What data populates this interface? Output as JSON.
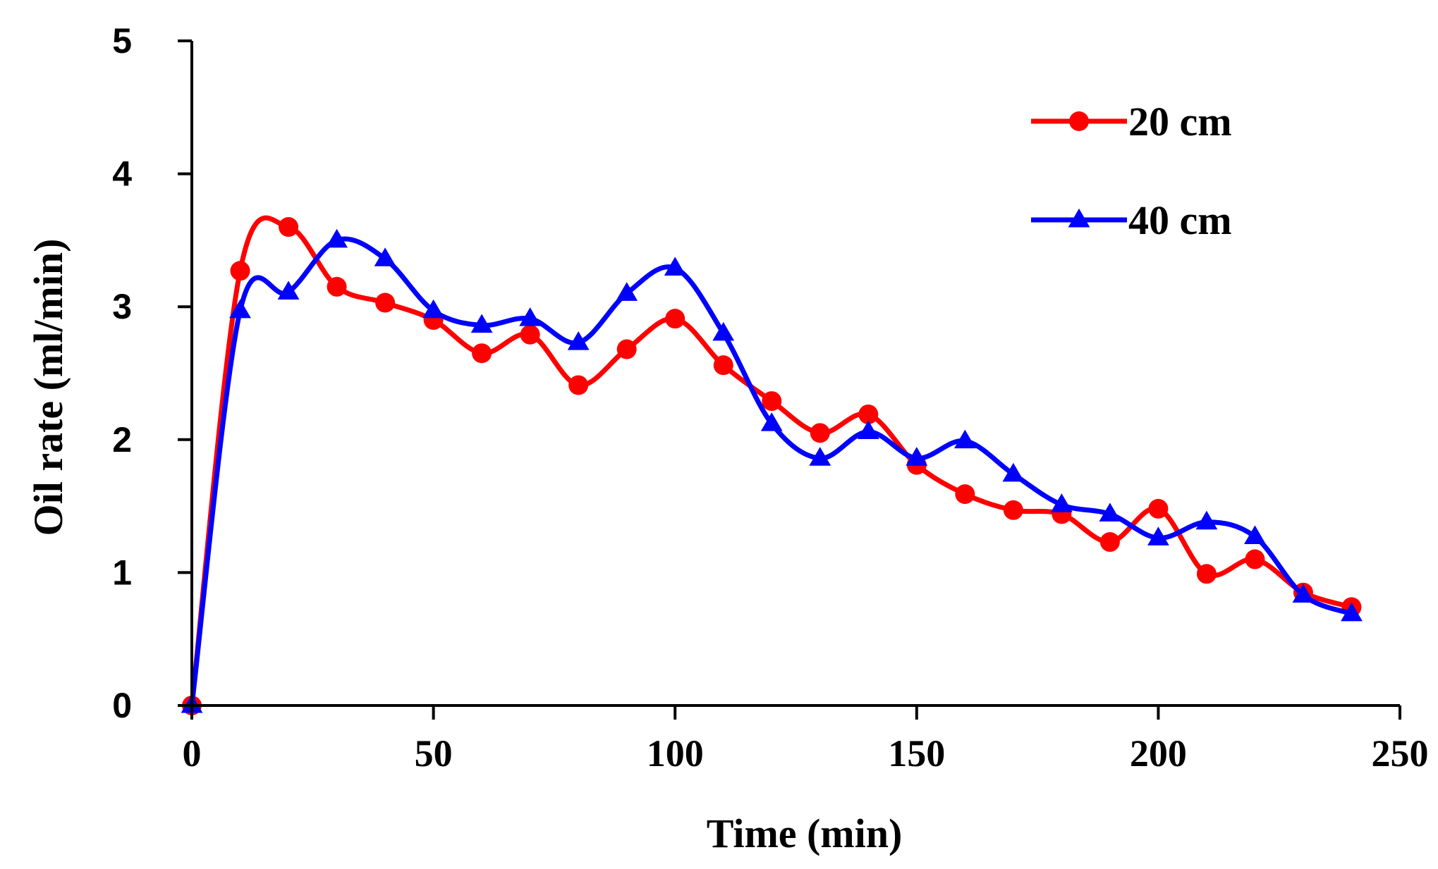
{
  "chart_data": {
    "type": "line",
    "xlabel": "Time (min)",
    "ylabel": "Oil rate (ml/min)",
    "xlim": [
      0,
      250
    ],
    "ylim": [
      0,
      5
    ],
    "xticks": [
      0,
      50,
      100,
      150,
      200,
      250
    ],
    "yticks": [
      0,
      1,
      2,
      3,
      4,
      5
    ],
    "grid": false,
    "legend_position": "top-right",
    "smooth": true,
    "series": [
      {
        "name": "20 cm",
        "color": "#ff0000",
        "marker": "circle",
        "x": [
          0,
          10,
          20,
          30,
          40,
          50,
          60,
          70,
          80,
          90,
          100,
          110,
          120,
          130,
          140,
          150,
          160,
          170,
          180,
          190,
          200,
          210,
          220,
          230,
          240
        ],
        "values": [
          0,
          3.27,
          3.6,
          3.15,
          3.03,
          2.9,
          2.65,
          2.79,
          2.41,
          2.68,
          2.91,
          2.56,
          2.29,
          2.05,
          2.19,
          1.81,
          1.59,
          1.47,
          1.44,
          1.23,
          1.48,
          0.99,
          1.1,
          0.85,
          0.74
        ]
      },
      {
        "name": "40 cm",
        "color": "#0000ff",
        "marker": "triangle",
        "x": [
          0,
          10,
          20,
          30,
          40,
          50,
          60,
          70,
          80,
          90,
          100,
          110,
          120,
          130,
          140,
          150,
          160,
          170,
          180,
          190,
          200,
          210,
          220,
          230,
          240
        ],
        "values": [
          0,
          2.97,
          3.11,
          3.5,
          3.36,
          2.97,
          2.86,
          2.91,
          2.73,
          3.1,
          3.29,
          2.8,
          2.12,
          1.86,
          2.06,
          1.86,
          1.99,
          1.74,
          1.51,
          1.44,
          1.26,
          1.38,
          1.27,
          0.83,
          0.69
        ]
      }
    ]
  }
}
